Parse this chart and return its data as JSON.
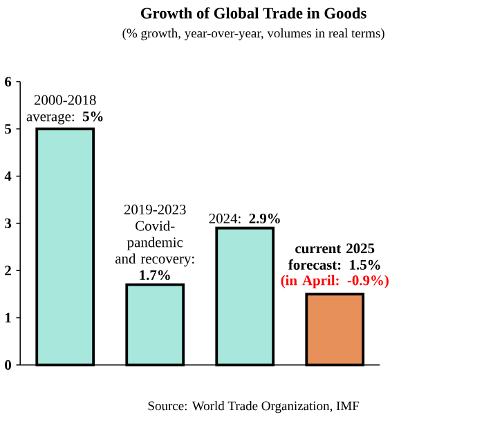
{
  "chart_data": {
    "type": "bar",
    "title": "Growth of Global Trade in Goods",
    "subtitle": "(% growth, year-over-year, volumes in real terms)",
    "categories": [
      null,
      null,
      null,
      null
    ],
    "values": [
      5,
      1.7,
      2.9,
      1.5
    ],
    "colors": [
      "#a8e8dc",
      "#a8e8dc",
      "#a8e8dc",
      "#e8905a"
    ],
    "ylim": [
      0,
      6
    ],
    "yticks": [
      0,
      1,
      2,
      3,
      4,
      5,
      6
    ],
    "annotations": [
      "2000-2018 average: **5%**",
      "2019-2023 Covid-pandemic and recovery: **1.7%**",
      "2024: **2.9%**",
      "**current 2025 forecast: 1.5%**",
      "**(in April: -0.9%)**",
      "Source: World Trade Organization, IMF"
    ]
  }
}
